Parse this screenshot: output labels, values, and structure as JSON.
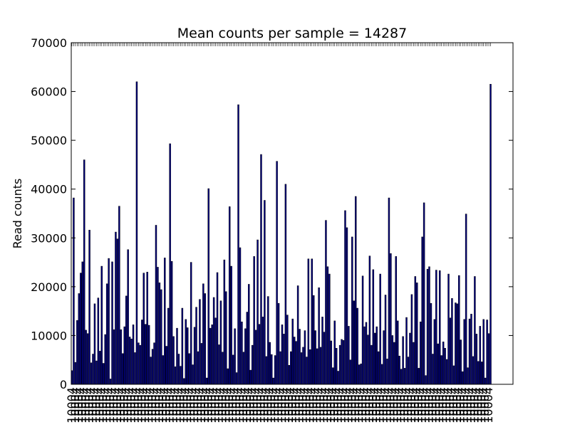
{
  "chart_data": {
    "type": "bar",
    "title": "Mean counts per sample = 14287",
    "xlabel": "",
    "ylabel": "Read counts",
    "ylim": [
      0,
      70000
    ],
    "yticks": [
      "0",
      "10000",
      "20000",
      "30000",
      "40000",
      "50000",
      "60000",
      "70000"
    ],
    "grid": false,
    "bar_color": "#000080",
    "x_tick_label_example": "10004",
    "values": [
      2800,
      38200,
      4500,
      13100,
      18600,
      22800,
      25100,
      46000,
      11100,
      10400,
      31600,
      4400,
      6200,
      16500,
      4800,
      17700,
      6800,
      24200,
      4300,
      10200,
      20600,
      25800,
      1100,
      25100,
      11200,
      31200,
      29800,
      36500,
      11200,
      6300,
      11800,
      18100,
      27600,
      9700,
      9300,
      12200,
      6500,
      62000,
      8500,
      8000,
      13200,
      22800,
      12300,
      23000,
      12100,
      5600,
      7200,
      8500,
      32600,
      24000,
      20800,
      19400,
      5900,
      25900,
      7800,
      15600,
      49300,
      25200,
      9800,
      3600,
      11500,
      6200,
      3700,
      15600,
      1200,
      13300,
      11600,
      6300,
      25000,
      4000,
      11700,
      15800,
      6700,
      17400,
      8400,
      20600,
      18600,
      1300,
      40100,
      11500,
      12200,
      17800,
      13600,
      22900,
      8100,
      17100,
      6600,
      25500,
      19000,
      3200,
      36400,
      24200,
      6000,
      11400,
      2400,
      57300,
      28000,
      12800,
      6600,
      11400,
      14800,
      20500,
      2900,
      8000,
      26200,
      11100,
      29600,
      12300,
      47100,
      13800,
      37700,
      5700,
      18000,
      8600,
      6100,
      1300,
      5900,
      45700,
      16600,
      6700,
      12200,
      10300,
      41000,
      14200,
      3900,
      6700,
      13400,
      9700,
      8800,
      20200,
      11300,
      6500,
      7600,
      11000,
      5600,
      25700,
      7100,
      25700,
      18200,
      11000,
      7300,
      19800,
      7600,
      13800,
      10700,
      33600,
      24100,
      22600,
      8900,
      3400,
      13000,
      7400,
      2700,
      8000,
      9200,
      9000,
      35600,
      32100,
      11900,
      5000,
      30200,
      17100,
      38500,
      15600,
      4000,
      4200,
      22200,
      11800,
      12700,
      10100,
      26300,
      8000,
      23500,
      10500,
      11800,
      6700,
      22600,
      4100,
      11000,
      18300,
      5200,
      38200,
      26800,
      10000,
      8600,
      26200,
      13000,
      5800,
      3100,
      9800,
      3300,
      13700,
      5600,
      10500,
      18400,
      8600,
      22100,
      20800,
      3300,
      12800,
      30200,
      37200,
      1800,
      23600,
      24100,
      16600,
      6200,
      13300,
      23400,
      8300,
      23300,
      5900,
      8700,
      7400,
      5100,
      22600,
      13600,
      17600,
      3800,
      16700,
      16500,
      22300,
      9100,
      2600,
      13300,
      34900,
      3400,
      13400,
      14400,
      5700,
      22100,
      10300,
      4700,
      11900,
      4600,
      13300,
      1300,
      13200,
      10400,
      61500
    ]
  }
}
